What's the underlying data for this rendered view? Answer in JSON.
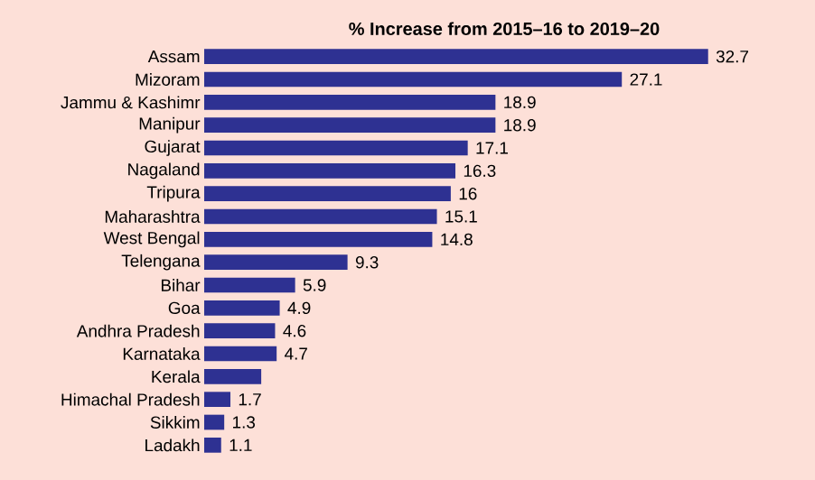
{
  "chart_data": {
    "type": "bar",
    "orientation": "horizontal",
    "title": "% Increase from 2015–16 to 2019–20",
    "categories": [
      "Assam",
      "Mizoram",
      "Jammu & Kashimr",
      "Manipur",
      "Gujarat",
      "Nagaland",
      "Tripura",
      "Maharashtra",
      "West Bengal",
      "Telengana",
      "Bihar",
      "Goa",
      "Andhra Pradesh",
      "Karnataka",
      "Kerala",
      "Himachal Pradesh",
      "Sikkim",
      "Ladakh"
    ],
    "values": [
      32.7,
      27.1,
      18.9,
      18.9,
      17.1,
      16.3,
      16,
      15.1,
      14.8,
      9.3,
      5.9,
      4.9,
      4.6,
      4.7,
      3.7,
      1.7,
      1.3,
      1.1
    ],
    "value_labels": [
      "32.7",
      "27.1",
      "18.9",
      "18.9",
      "17.1",
      "16.3",
      "16",
      "15.1",
      "14.8",
      "9.3",
      "5.9",
      "4.9",
      "4.6",
      "4.7",
      null,
      "1.7",
      "1.3",
      "1.1"
    ],
    "color": "#2e3192"
  }
}
